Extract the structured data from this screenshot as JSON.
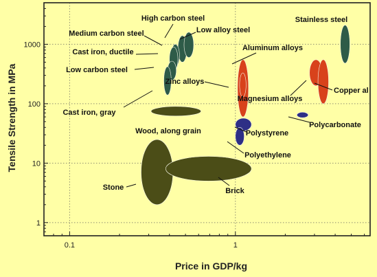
{
  "chart_data": {
    "type": "scatter",
    "title": "",
    "xlabel": "Price in GDP/kg",
    "ylabel": "Tensile Strength in MPa",
    "xscale": "log",
    "yscale": "log",
    "xlim": [
      0.07,
      6.5
    ],
    "ylim": [
      0.6,
      5000
    ],
    "xticks": [
      {
        "value": 0.1,
        "label": "0.1"
      },
      {
        "value": 1,
        "label": "1"
      }
    ],
    "yticks": [
      {
        "value": 1,
        "label": "1"
      },
      {
        "value": 10,
        "label": "10"
      },
      {
        "value": 100,
        "label": "100"
      },
      {
        "value": 1000,
        "label": "1000"
      }
    ],
    "grid": true,
    "colors": {
      "background": "#ffffa6",
      "grid": "#8f8f72",
      "steel": "#2e5b48",
      "olive": "#4b4d17",
      "nonferrous": "#d8421b",
      "polymer": "#2e2f86",
      "ellipse_edge": "#f5f5e6"
    },
    "materials": [
      {
        "name": "High carbon steel",
        "group": "steel",
        "x": [
          0.45,
          0.51
        ],
        "y": [
          500,
          1400
        ]
      },
      {
        "name": "Medium carbon steel",
        "group": "steel",
        "x": [
          0.41,
          0.46
        ],
        "y": [
          420,
          1000
        ]
      },
      {
        "name": "Low alloy steel",
        "group": "steel",
        "x": [
          0.49,
          0.56
        ],
        "y": [
          600,
          1600
        ]
      },
      {
        "name": "Cast iron, ductile",
        "group": "steel",
        "x": [
          0.4,
          0.45
        ],
        "y": [
          350,
          900
        ]
      },
      {
        "name": "Low carbon steel",
        "group": "steel",
        "x": [
          0.39,
          0.44
        ],
        "y": [
          250,
          520
        ]
      },
      {
        "name": "Cast iron, gray",
        "group": "steel",
        "x": [
          0.37,
          0.41
        ],
        "y": [
          140,
          420
        ]
      },
      {
        "name": "Stainless steel",
        "group": "steel",
        "x": [
          4.3,
          4.9
        ],
        "y": [
          480,
          2100
        ]
      },
      {
        "name": "Wood, along grain",
        "group": "olive",
        "x": [
          0.31,
          0.62
        ],
        "y": [
          62,
          90
        ]
      },
      {
        "name": "Stone",
        "group": "olive",
        "x": [
          0.27,
          0.42
        ],
        "y": [
          2,
          25
        ]
      },
      {
        "name": "Brick",
        "group": "olive",
        "x": [
          0.38,
          1.25
        ],
        "y": [
          5,
          13
        ]
      },
      {
        "name": "Aluminum alloys",
        "group": "nonferrous",
        "x": [
          1.03,
          1.2
        ],
        "y": [
          60,
          550
        ]
      },
      {
        "name": "Zinc alloys",
        "group": "nonferrous",
        "x": [
          1.06,
          1.16
        ],
        "y": [
          130,
          330
        ]
      },
      {
        "name": "Magnesium alloys",
        "group": "nonferrous",
        "x": [
          2.8,
          3.35
        ],
        "y": [
          200,
          550
        ]
      },
      {
        "name": "Copper al",
        "group": "nonferrous",
        "x": [
          3.15,
          3.65
        ],
        "y": [
          100,
          550
        ]
      },
      {
        "name": "Polystyrene",
        "group": "polymer",
        "x": [
          1.0,
          1.25
        ],
        "y": [
          35,
          57
        ]
      },
      {
        "name": "Polyethylene",
        "group": "polymer",
        "x": [
          1.0,
          1.13
        ],
        "y": [
          20,
          40
        ]
      },
      {
        "name": "Polycarbonate",
        "group": "polymer",
        "x": [
          2.35,
          2.75
        ],
        "y": [
          58,
          72
        ]
      }
    ]
  }
}
